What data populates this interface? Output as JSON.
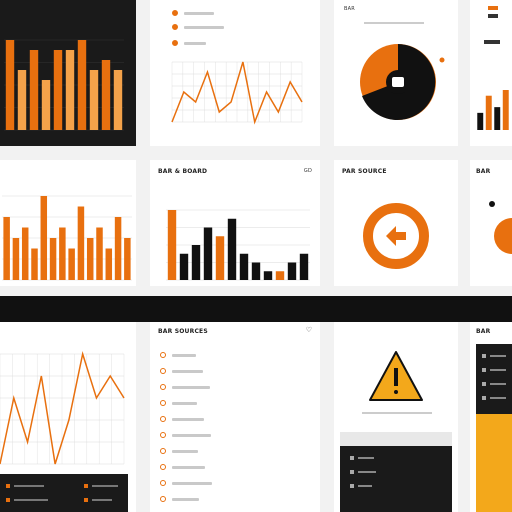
{
  "colors": {
    "orange": "#e8700f",
    "orange_light": "#f4a24a",
    "black": "#111111",
    "yellow": "#f3a81b",
    "grid": "#dadada"
  },
  "cards": {
    "pie_top": {
      "label": "BAR"
    },
    "bars_mid": {
      "title": "BAR & BOARD",
      "tag": "GD"
    },
    "donut_mid": {
      "title": "PAR SOURCE"
    },
    "small_right_mid": {
      "title": "BAR"
    },
    "list_bottom": {
      "title": "BAR SOURCES"
    },
    "side_bottom": {
      "title": "BAR"
    }
  },
  "chart_data": [
    {
      "type": "bar",
      "series": [
        {
          "values": [
            9,
            6,
            8,
            5,
            8,
            8,
            9,
            6,
            7,
            6
          ]
        }
      ]
    },
    {
      "type": "line",
      "series": [
        {
          "values": [
            3,
            6,
            5,
            8,
            4,
            5,
            9,
            3,
            6,
            4,
            7,
            5
          ]
        }
      ]
    },
    {
      "type": "bar",
      "series": [
        {
          "values": [
            6,
            4,
            5,
            3,
            8,
            4,
            5,
            3,
            7,
            4,
            5,
            3,
            6,
            4
          ]
        }
      ]
    },
    {
      "type": "bar",
      "series": [
        {
          "values": [
            8,
            3,
            4,
            6,
            5,
            7,
            3,
            2,
            1,
            1,
            2,
            3
          ]
        }
      ]
    },
    {
      "type": "line",
      "series": [
        {
          "values": [
            2,
            5,
            3,
            6,
            2,
            4,
            7,
            5,
            6,
            5
          ]
        }
      ]
    }
  ]
}
